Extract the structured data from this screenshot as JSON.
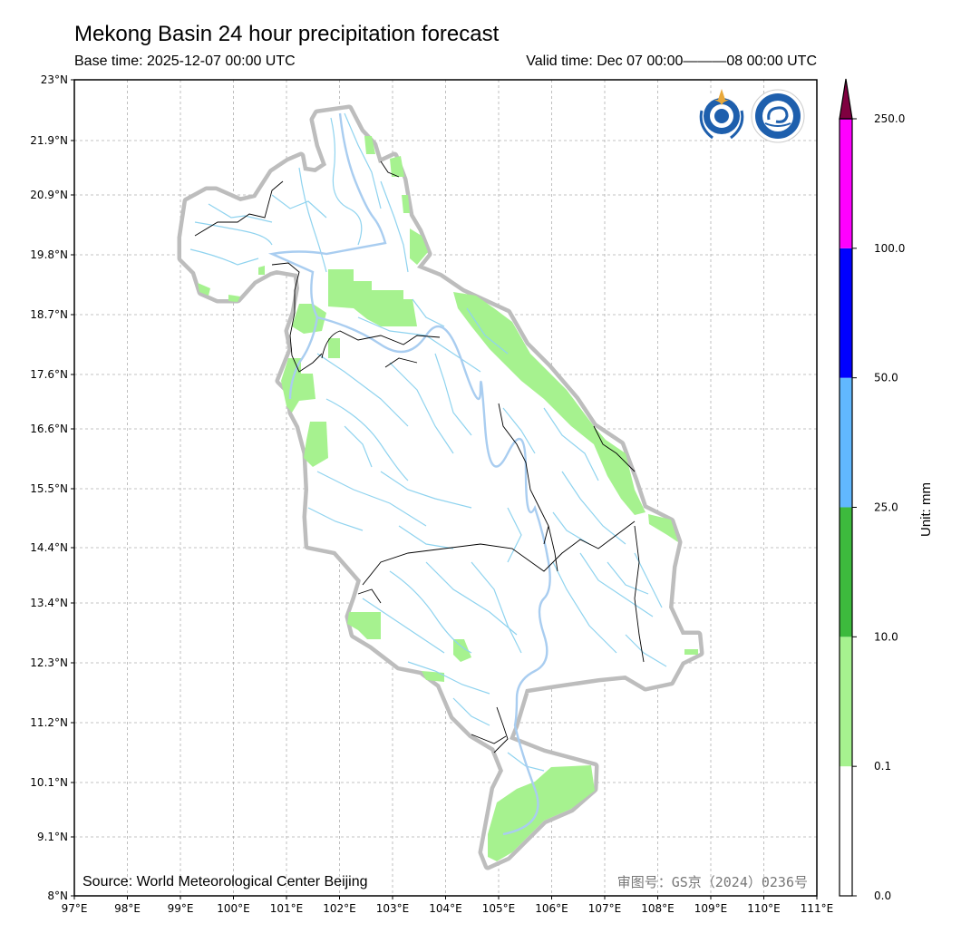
{
  "header": {
    "title": "Mekong Basin 24 hour precipitation forecast",
    "base_time": "Base time: 2025-12-07 00:00 UTC",
    "valid_time": "Valid time: Dec 07 00:00———08 00:00 UTC"
  },
  "map": {
    "lat_ticks": [
      "23°N",
      "21.9°N",
      "20.9°N",
      "19.8°N",
      "18.7°N",
      "17.6°N",
      "16.6°N",
      "15.5°N",
      "14.4°N",
      "13.4°N",
      "12.3°N",
      "11.2°N",
      "10.1°N",
      "9.1°N",
      "8°N"
    ],
    "lon_ticks": [
      "97°E",
      "98°E",
      "99°E",
      "100°E",
      "101°E",
      "102°E",
      "103°E",
      "104°E",
      "105°E",
      "106°E",
      "107°E",
      "108°E",
      "109°E",
      "110°E",
      "111°E"
    ],
    "source": "Source: World Meteorological Center Beijing",
    "approval": "审图号：GS京（2024）0236号",
    "logos": [
      "wmo-logo",
      "cma-logo"
    ],
    "colors": {
      "basin_halo": "#bdbdbd",
      "river": "#8fd3ef",
      "main_river": "#a9cdf0",
      "precip_light": "#a6f28f",
      "border": "#000000"
    }
  },
  "colorbar": {
    "unit_label": "Unit: mm",
    "levels": [
      "0.0",
      "0.1",
      "10.0",
      "25.0",
      "50.0",
      "100.0",
      "250.0"
    ],
    "colors": [
      "#ffffff",
      "#a6f28f",
      "#3dba3d",
      "#61b8ff",
      "#0000ff",
      "#ff00ff",
      "#7f0040"
    ]
  }
}
